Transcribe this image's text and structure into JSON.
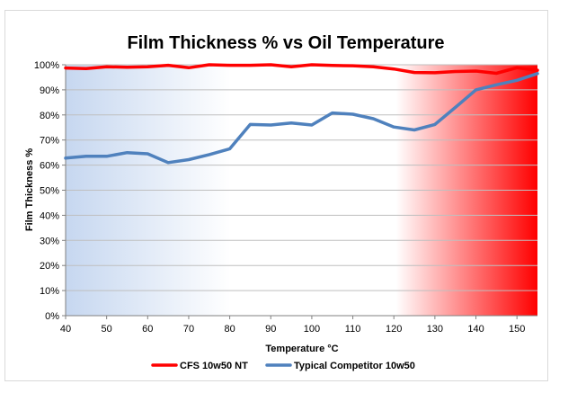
{
  "chart_data": {
    "type": "line",
    "title": "Film Thickness % vs Oil Temperature",
    "xlabel": "Temperature °C",
    "ylabel": "Film Thickness %",
    "xlim": [
      40,
      155
    ],
    "ylim": [
      0,
      100
    ],
    "x_ticks": [
      40,
      50,
      60,
      70,
      80,
      90,
      100,
      110,
      120,
      130,
      140,
      150
    ],
    "y_ticks": [
      "0%",
      "10%",
      "20%",
      "30%",
      "40%",
      "50%",
      "60%",
      "70%",
      "80%",
      "90%",
      "100%"
    ],
    "grid": "horizontal",
    "legend_position": "bottom",
    "background": "gradient blue (left) to white to red (right)",
    "colors": {
      "grad_blue": "#c6d7f0",
      "grad_white": "#ffffff",
      "grad_red": "#ff0000"
    },
    "series": [
      {
        "name": "CFS 10w50 NT",
        "color": "#ff0000",
        "x": [
          40,
          45,
          50,
          55,
          60,
          65,
          70,
          75,
          80,
          85,
          90,
          95,
          100,
          105,
          110,
          115,
          120,
          125,
          130,
          135,
          140,
          145,
          150,
          155
        ],
        "values": [
          98.7,
          98.5,
          99.2,
          99.0,
          99.2,
          99.8,
          98.8,
          100,
          99.8,
          99.8,
          100,
          99.2,
          100,
          99.7,
          99.6,
          99.2,
          98.3,
          96.9,
          96.8,
          97.3,
          97.5,
          96.6,
          98.8,
          97.8
        ]
      },
      {
        "name": "Typical Competitor 10w50",
        "color": "#4f81bd",
        "x": [
          40,
          45,
          50,
          55,
          60,
          65,
          70,
          75,
          80,
          85,
          90,
          95,
          100,
          105,
          110,
          115,
          120,
          125,
          130,
          135,
          140,
          145,
          150,
          155
        ],
        "values": [
          62.8,
          63.5,
          63.5,
          65.0,
          64.5,
          61.0,
          62.2,
          64.2,
          66.5,
          76.2,
          76.0,
          76.8,
          76.0,
          80.8,
          80.3,
          78.5,
          75.2,
          74.0,
          76.2,
          83.0,
          90.0,
          92.0,
          93.8,
          96.5
        ]
      }
    ]
  }
}
